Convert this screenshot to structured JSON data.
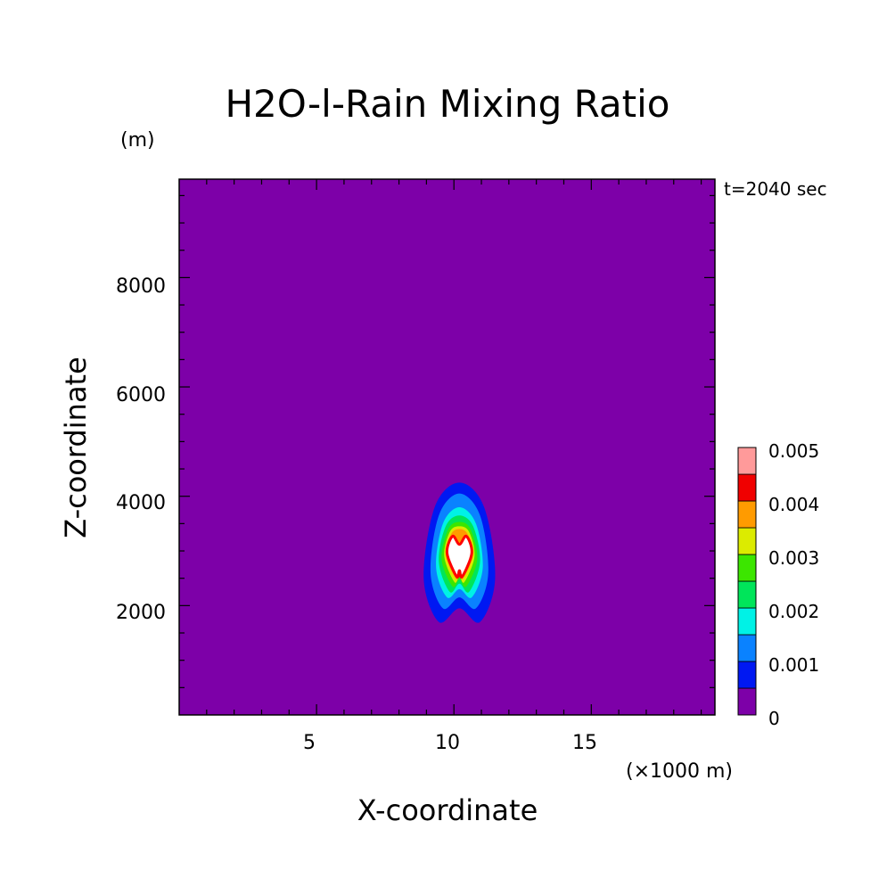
{
  "chart_data": {
    "type": "heatmap",
    "title": "H2O-l-Rain Mixing Ratio",
    "y_unit": "(m)",
    "x_unit": "(×1000 m)",
    "xlabel": "X-coordinate",
    "ylabel": "Z-coordinate",
    "time_label": "t=2040 sec",
    "xlim": [
      0,
      19.5
    ],
    "ylim": [
      0,
      9800
    ],
    "x_ticks": [
      5,
      10,
      15
    ],
    "y_ticks": [
      2000,
      4000,
      6000,
      8000
    ],
    "x_tick_labels": [
      "5",
      "10",
      "15"
    ],
    "y_tick_labels": [
      "2000",
      "4000",
      "6000",
      "8000"
    ],
    "colorbar": {
      "levels": [
        0,
        0.0005,
        0.001,
        0.0015,
        0.002,
        0.0025,
        0.003,
        0.0035,
        0.004,
        0.0045,
        0.005
      ],
      "labels": [
        "0",
        "0.001",
        "0.002",
        "0.003",
        "0.004",
        "0.005"
      ],
      "colors": [
        "#7d00a8",
        "#0018f2",
        "#0a82ff",
        "#00f2e6",
        "#00e55a",
        "#3ce600",
        "#dceb00",
        "#ff9b00",
        "#f00000",
        "#ff9a9a"
      ]
    },
    "background_color": "#7d00a8",
    "peak_color": "#ffffff",
    "cloud_outline_color": "#ff0000",
    "cloud_center": {
      "x": 10.2,
      "z": 2950
    },
    "contours": [
      {
        "level": 0.0005,
        "color": "#0018f2",
        "points": [
          [
            9.45,
            1700
          ],
          [
            10.2,
            1950
          ],
          [
            10.95,
            1700
          ],
          [
            11.5,
            2500
          ],
          [
            11.1,
            3800
          ],
          [
            10.2,
            4250
          ],
          [
            9.3,
            3800
          ],
          [
            8.9,
            2500
          ]
        ]
      },
      {
        "level": 0.001,
        "color": "#0a82ff",
        "points": [
          [
            9.6,
            1950
          ],
          [
            10.2,
            2150
          ],
          [
            10.8,
            1950
          ],
          [
            11.25,
            2600
          ],
          [
            10.95,
            3650
          ],
          [
            10.2,
            4050
          ],
          [
            9.45,
            3650
          ],
          [
            9.15,
            2600
          ]
        ]
      },
      {
        "level": 0.0015,
        "color": "#00f2e6",
        "points": [
          [
            9.75,
            2150
          ],
          [
            10.2,
            2300
          ],
          [
            10.65,
            2150
          ],
          [
            11.05,
            2700
          ],
          [
            10.8,
            3500
          ],
          [
            10.2,
            3800
          ],
          [
            9.6,
            3500
          ],
          [
            9.35,
            2700
          ]
        ]
      },
      {
        "level": 0.002,
        "color": "#00e55a",
        "points": [
          [
            9.85,
            2250
          ],
          [
            10.2,
            2400
          ],
          [
            10.55,
            2250
          ],
          [
            10.95,
            2800
          ],
          [
            10.7,
            3450
          ],
          [
            10.2,
            3650
          ],
          [
            9.7,
            3450
          ],
          [
            9.45,
            2800
          ]
        ]
      },
      {
        "level": 0.0025,
        "color": "#3ce600",
        "points": [
          [
            9.95,
            2350
          ],
          [
            10.2,
            2480
          ],
          [
            10.45,
            2350
          ],
          [
            10.85,
            2850
          ],
          [
            10.6,
            3400
          ],
          [
            10.2,
            3530
          ],
          [
            9.8,
            3400
          ],
          [
            9.55,
            2850
          ]
        ]
      },
      {
        "level": 0.003,
        "color": "#dceb00",
        "points": [
          [
            10.02,
            2430
          ],
          [
            10.2,
            2540
          ],
          [
            10.38,
            2430
          ],
          [
            10.75,
            2900
          ],
          [
            10.55,
            3350
          ],
          [
            10.2,
            3450
          ],
          [
            9.85,
            3350
          ],
          [
            9.65,
            2900
          ]
        ]
      },
      {
        "level": 0.0035,
        "color": "#ff9b00",
        "points": [
          [
            10.07,
            2490
          ],
          [
            10.2,
            2590
          ],
          [
            10.33,
            2490
          ],
          [
            10.7,
            2930
          ],
          [
            10.5,
            3310
          ],
          [
            10.2,
            3400
          ],
          [
            9.9,
            3310
          ],
          [
            9.7,
            2930
          ]
        ]
      },
      {
        "level": 0.004,
        "color": "#ffffff",
        "points": [
          [
            10.1,
            2530
          ],
          [
            10.2,
            2640
          ],
          [
            10.3,
            2530
          ],
          [
            10.65,
            2960
          ],
          [
            10.45,
            3270
          ],
          [
            10.2,
            3120
          ],
          [
            9.95,
            3270
          ],
          [
            9.75,
            2960
          ]
        ]
      }
    ]
  }
}
